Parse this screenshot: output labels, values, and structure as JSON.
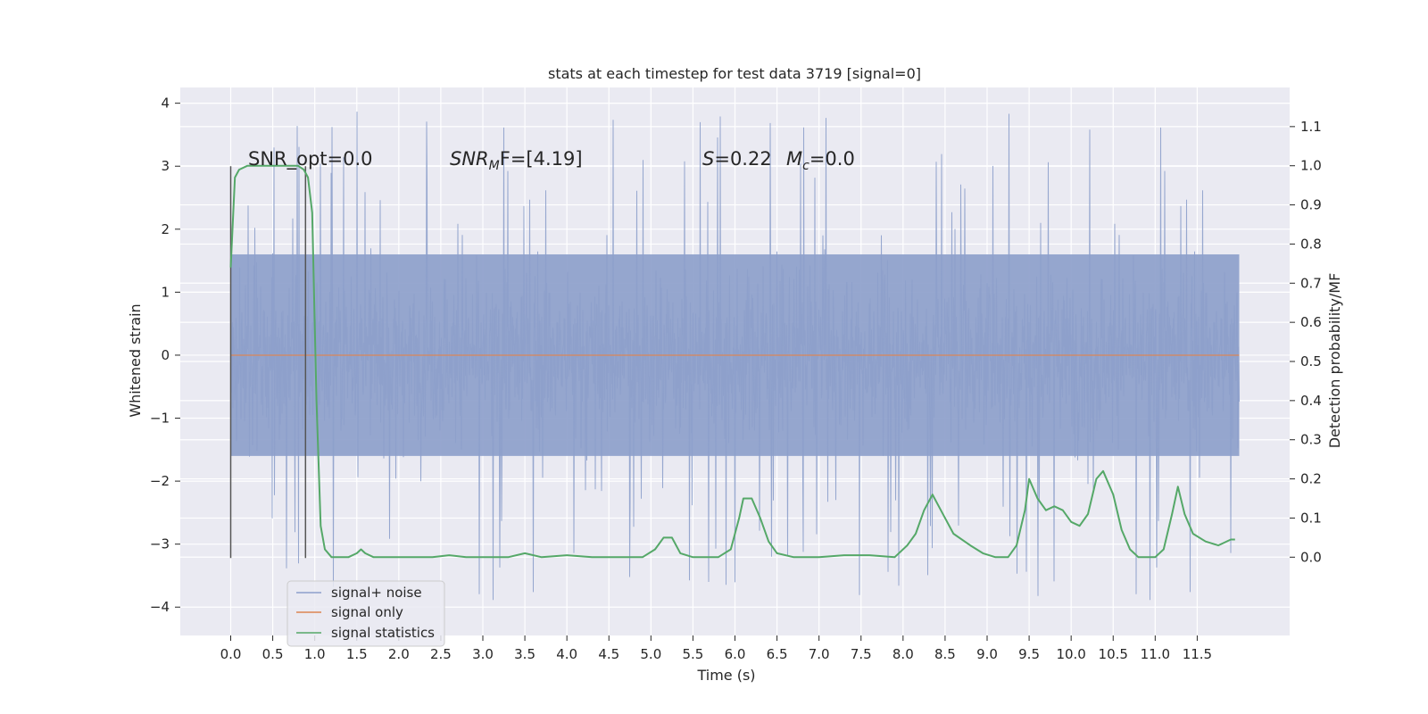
{
  "chart_data": {
    "type": "line",
    "title": "stats at each timestep for test data 3719 [signal=0]",
    "xlabel": "Time (s)",
    "ylabel": "Whitened strain",
    "y2label": "Detection probability/MF",
    "xlim": [
      -0.6,
      12.6
    ],
    "ylim": [
      -4.45,
      4.25
    ],
    "y2lim": [
      -0.2,
      1.2
    ],
    "x_ticks": [
      "0.0",
      "0.5",
      "1.0",
      "1.5",
      "2.0",
      "2.5",
      "3.0",
      "3.5",
      "4.0",
      "4.5",
      "5.0",
      "5.5",
      "6.0",
      "6.5",
      "7.0",
      "7.5",
      "8.0",
      "8.5",
      "9.0",
      "9.5",
      "10.0",
      "10.5",
      "11.0",
      "11.5"
    ],
    "y_ticks": [
      "4",
      "3",
      "2",
      "1",
      "0",
      "−1",
      "−2",
      "−3",
      "−4"
    ],
    "y2_ticks": [
      "1.1",
      "1.0",
      "0.9",
      "0.8",
      "0.7",
      "0.6",
      "0.5",
      "0.4",
      "0.3",
      "0.2",
      "0.1",
      "0.0"
    ],
    "grid": true,
    "legend_position": "lower-left",
    "annotations": {
      "snr_opt": "SNR_opt=0.0",
      "snr_mf_name": "SNR",
      "snr_mf_sub": "M",
      "snr_mf_rest": "F=[4.19]",
      "s_name": "S",
      "s_rest": "=0.22",
      "mc_name": "M",
      "mc_sub": "c",
      "mc_rest": "=0.0"
    },
    "window_markers_x": [
      0.0,
      0.89
    ],
    "series": [
      {
        "name": "signal+ noise",
        "color": "#8da0cb",
        "noise_envelope": {
          "x_start": 0.0,
          "x_end": 12.0,
          "band_min": -1.6,
          "band_max": 1.6,
          "peak_max": 3.9,
          "peak_min": -4.05
        }
      },
      {
        "name": "signal only",
        "color": "#dd8452",
        "x": [
          0.0,
          12.0
        ],
        "y": [
          0.0,
          0.0
        ]
      },
      {
        "name": "signal statistics",
        "color": "#55a868",
        "axis": "right",
        "x": [
          0.0,
          0.05,
          0.1,
          0.2,
          0.3,
          0.5,
          0.7,
          0.8,
          0.87,
          0.92,
          0.97,
          1.02,
          1.07,
          1.12,
          1.2,
          1.3,
          1.4,
          1.5,
          1.55,
          1.6,
          1.7,
          1.8,
          2.0,
          2.4,
          2.6,
          2.8,
          3.0,
          3.3,
          3.5,
          3.7,
          4.0,
          4.3,
          4.6,
          4.9,
          5.05,
          5.15,
          5.25,
          5.35,
          5.5,
          5.8,
          5.95,
          6.05,
          6.1,
          6.2,
          6.3,
          6.4,
          6.5,
          6.7,
          7.0,
          7.3,
          7.6,
          7.9,
          8.05,
          8.15,
          8.25,
          8.35,
          8.45,
          8.6,
          8.8,
          8.95,
          9.1,
          9.25,
          9.35,
          9.45,
          9.5,
          9.6,
          9.7,
          9.8,
          9.9,
          10.0,
          10.1,
          10.2,
          10.3,
          10.38,
          10.5,
          10.6,
          10.7,
          10.8,
          11.0,
          11.1,
          11.2,
          11.27,
          11.35,
          11.45,
          11.6,
          11.75,
          11.9,
          11.95
        ],
        "y": [
          0.74,
          0.97,
          0.99,
          1.0,
          1.0,
          1.0,
          1.0,
          1.0,
          0.99,
          0.97,
          0.88,
          0.4,
          0.08,
          0.02,
          0.0,
          0.0,
          0.0,
          0.01,
          0.02,
          0.01,
          0.0,
          0.0,
          0.0,
          0.0,
          0.005,
          0.0,
          0.0,
          0.0,
          0.01,
          0.0,
          0.005,
          0.0,
          0.0,
          0.0,
          0.02,
          0.05,
          0.05,
          0.01,
          0.0,
          0.0,
          0.02,
          0.1,
          0.15,
          0.15,
          0.1,
          0.04,
          0.01,
          0.0,
          0.0,
          0.005,
          0.005,
          0.0,
          0.03,
          0.06,
          0.12,
          0.16,
          0.12,
          0.06,
          0.03,
          0.01,
          0.0,
          0.0,
          0.03,
          0.12,
          0.2,
          0.15,
          0.12,
          0.13,
          0.12,
          0.09,
          0.08,
          0.11,
          0.2,
          0.22,
          0.16,
          0.07,
          0.02,
          0.0,
          0.0,
          0.02,
          0.11,
          0.18,
          0.11,
          0.06,
          0.04,
          0.03,
          0.045,
          0.045
        ]
      }
    ]
  }
}
